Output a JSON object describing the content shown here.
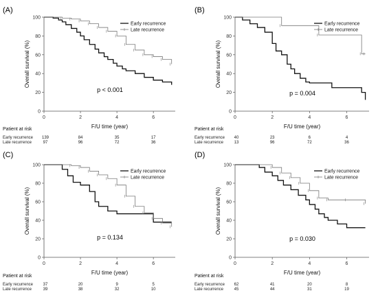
{
  "chart_data": [
    {
      "type": "line",
      "panel_label": "(A)",
      "title": "",
      "xlabel": "F/U time (year)",
      "ylabel": "Overall survival (%)",
      "xlim": [
        0,
        7.2
      ],
      "ylim": [
        0,
        100
      ],
      "xticks": [
        0,
        2,
        4,
        6
      ],
      "yticks": [
        0,
        20,
        40,
        60,
        80,
        100
      ],
      "legend": "top-right",
      "p_value": "p < 0.001",
      "series": [
        {
          "name": "Early recurrence",
          "style": "thick",
          "x": [
            0,
            0.5,
            0.8,
            1.0,
            1.2,
            1.5,
            1.8,
            2.0,
            2.2,
            2.5,
            2.8,
            3.0,
            3.3,
            3.5,
            3.8,
            4.0,
            4.3,
            4.5,
            5.0,
            5.5,
            6.0,
            6.5,
            7.0
          ],
          "y": [
            100,
            99,
            97,
            95,
            92,
            88,
            84,
            80,
            76,
            71,
            66,
            62,
            58,
            55,
            51,
            48,
            45,
            43,
            40,
            36,
            33,
            31,
            28
          ]
        },
        {
          "name": "Late recurrence",
          "style": "thin",
          "x": [
            0,
            1.0,
            1.5,
            2.0,
            2.5,
            3.0,
            3.5,
            4.0,
            4.5,
            5.0,
            5.5,
            6.0,
            6.5,
            7.0
          ],
          "y": [
            100,
            99,
            98,
            96,
            93,
            89,
            85,
            80,
            71,
            65,
            60,
            58,
            55,
            50
          ]
        }
      ],
      "risk_table": {
        "title": "Patient at risk",
        "rows": [
          {
            "label": "Early recurrence",
            "values": [
              "139",
              "84",
              "35",
              "17"
            ]
          },
          {
            "label": "Late recurrence",
            "values": [
              "97",
              "96",
              "72",
              "36"
            ]
          }
        ]
      }
    },
    {
      "type": "line",
      "panel_label": "(B)",
      "title": "",
      "xlabel": "F/U time (year)",
      "ylabel": "Overall survival (%)",
      "xlim": [
        0,
        7.2
      ],
      "ylim": [
        0,
        100
      ],
      "xticks": [
        0,
        2,
        4,
        6
      ],
      "yticks": [
        0,
        20,
        40,
        60,
        80,
        100
      ],
      "legend": "top-right",
      "p_value": "p = 0.004",
      "series": [
        {
          "name": "Early recurrence",
          "style": "thick",
          "x": [
            0,
            0.4,
            0.8,
            1.2,
            1.6,
            2.0,
            2.2,
            2.5,
            2.8,
            3.0,
            3.2,
            3.5,
            3.8,
            4.0,
            5.2,
            6.8,
            7.0
          ],
          "y": [
            100,
            97,
            93,
            89,
            84,
            72,
            64,
            60,
            50,
            45,
            40,
            35,
            31,
            30,
            25,
            20,
            12
          ]
        },
        {
          "name": "Late recurrence",
          "style": "thin",
          "x": [
            0,
            2.5,
            4.5,
            6.8,
            7.0
          ],
          "y": [
            100,
            91,
            81,
            61,
            61
          ]
        }
      ],
      "risk_table": {
        "title": "Patient at risk",
        "rows": [
          {
            "label": "Early recurrence",
            "values": [
              "40",
              "23",
              "6",
              "4"
            ]
          },
          {
            "label": "Late recurrence",
            "values": [
              "13",
              "96",
              "72",
              "36"
            ]
          }
        ]
      }
    },
    {
      "type": "line",
      "panel_label": "(C)",
      "title": "",
      "xlabel": "F/U time (year)",
      "ylabel": "Overall survival (%)",
      "xlim": [
        0,
        7.2
      ],
      "ylim": [
        0,
        100
      ],
      "xticks": [
        0,
        2,
        4,
        6
      ],
      "yticks": [
        0,
        20,
        40,
        60,
        80,
        100
      ],
      "legend": "top-right",
      "p_value": "p = 0.134",
      "series": [
        {
          "name": "Early recurrence",
          "style": "thick",
          "x": [
            0,
            1.0,
            1.3,
            1.6,
            2.0,
            2.5,
            2.8,
            3.0,
            3.5,
            4.0,
            5.5,
            6.0,
            7.0
          ],
          "y": [
            100,
            95,
            88,
            81,
            78,
            71,
            60,
            55,
            50,
            47,
            47,
            38,
            38
          ]
        },
        {
          "name": "Late recurrence",
          "style": "thin",
          "x": [
            0,
            1.5,
            2.0,
            2.5,
            3.0,
            3.5,
            4.0,
            4.5,
            5.0,
            5.5,
            6.0,
            6.5,
            7.0
          ],
          "y": [
            100,
            99,
            97,
            93,
            89,
            85,
            78,
            66,
            55,
            48,
            42,
            37,
            33
          ]
        }
      ],
      "risk_table": {
        "title": "Patient at risk",
        "rows": [
          {
            "label": "Early recurrence",
            "values": [
              "37",
              "20",
              "9",
              "5"
            ]
          },
          {
            "label": "Late recurrence",
            "values": [
              "39",
              "38",
              "32",
              "10"
            ]
          }
        ]
      }
    },
    {
      "type": "line",
      "panel_label": "(D)",
      "title": "",
      "xlabel": "F/U time (year)",
      "ylabel": "Overall survival (%)",
      "xlim": [
        0,
        7.2
      ],
      "ylim": [
        0,
        100
      ],
      "xticks": [
        0,
        2,
        4,
        6
      ],
      "yticks": [
        0,
        20,
        40,
        60,
        80,
        100
      ],
      "legend": "top-right",
      "p_value": "p = 0.030",
      "series": [
        {
          "name": "Early recurrence",
          "style": "thick",
          "x": [
            0,
            1.3,
            1.6,
            2.0,
            2.3,
            2.6,
            3.0,
            3.4,
            3.8,
            4.0,
            4.3,
            4.5,
            4.8,
            5.0,
            5.5,
            6.0,
            7.0
          ],
          "y": [
            100,
            97,
            92,
            88,
            83,
            78,
            73,
            67,
            62,
            57,
            52,
            47,
            43,
            40,
            36,
            32,
            32
          ]
        },
        {
          "name": "Late recurrence",
          "style": "thin",
          "x": [
            0,
            2.0,
            2.5,
            3.0,
            3.5,
            4.0,
            4.5,
            5.0,
            6.0,
            7.0
          ],
          "y": [
            100,
            97,
            91,
            86,
            80,
            72,
            64,
            62,
            62,
            58
          ]
        }
      ],
      "risk_table": {
        "title": "Patient at risk",
        "rows": [
          {
            "label": "Early recurrence",
            "values": [
              "62",
              "41",
              "20",
              "8"
            ]
          },
          {
            "label": "Late recurrence",
            "values": [
              "45",
              "44",
              "31",
              "19"
            ]
          }
        ]
      }
    }
  ]
}
